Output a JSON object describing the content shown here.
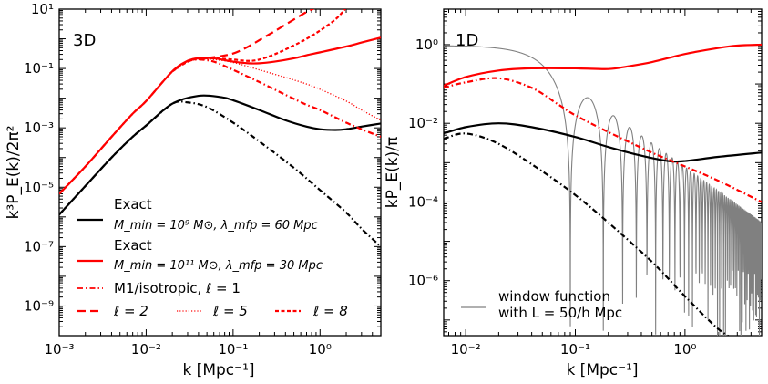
{
  "chart_data": [
    {
      "type": "line",
      "panel_label": "3D",
      "xlabel": "k [Mpc⁻¹]",
      "ylabel": "k³P_E(k)/2π²",
      "xscale": "log",
      "yscale": "log",
      "xlim": [
        0.001,
        5.0
      ],
      "ylim": [
        1e-10,
        10
      ],
      "x_ticks": [
        0.001,
        0.01,
        0.1,
        1
      ],
      "x_tick_labels": [
        "10⁻³",
        "10⁻²",
        "10⁻¹",
        "10⁰"
      ],
      "y_ticks": [
        1e-09,
        1e-07,
        1e-05,
        0.001,
        0.1,
        10
      ],
      "y_tick_labels": [
        "10⁻⁹",
        "10⁻⁷",
        "10⁻⁵",
        "10⁻³",
        "10⁻¹",
        "10¹"
      ],
      "grid": false,
      "legend": {
        "placement": "lower-left",
        "entries": [
          {
            "line1": "Exact",
            "line2": "M_min = 10⁹ M⊙,  λ_mfp = 60 Mpc",
            "color": "#000000",
            "style": "solid"
          },
          {
            "line1": "Exact",
            "line2": "M_min = 10¹¹ M⊙,  λ_mfp = 30 Mpc",
            "color": "#ff0000",
            "style": "solid"
          },
          {
            "line1": "M1/isotropic, ℓ = 1",
            "color": "#ff0000",
            "style": "dashdot"
          }
        ],
        "row": [
          {
            "label": "ℓ = 2",
            "color": "#ff0000",
            "style": "longdash"
          },
          {
            "label": "ℓ = 5",
            "color": "#ff0000",
            "style": "dotted"
          },
          {
            "label": "ℓ = 8",
            "color": "#ff0000",
            "style": "shortdash"
          }
        ]
      },
      "series": [
        {
          "legend_ref": "Exact (M_min=1e9, λ=60)",
          "color": "#000000",
          "style": "solid",
          "x": [
            0.001,
            0.002,
            0.004,
            0.007,
            0.01,
            0.02,
            0.04,
            0.07,
            0.1,
            0.2,
            0.4,
            0.7,
            1.0,
            1.5,
            2.0,
            3.0,
            5.0
          ],
          "y": [
            1.2e-06,
            1.1e-05,
            0.0001,
            0.0005,
            0.0012,
            0.0065,
            0.012,
            0.011,
            0.0085,
            0.004,
            0.0018,
            0.0011,
            0.0009,
            0.00085,
            0.0009,
            0.0011,
            0.0014
          ]
        },
        {
          "legend_ref": "Exact (M_min=1e11, λ=30)",
          "color": "#ff0000",
          "style": "solid",
          "x": [
            0.001,
            0.002,
            0.004,
            0.007,
            0.01,
            0.02,
            0.03,
            0.04,
            0.06,
            0.1,
            0.15,
            0.2,
            0.3,
            0.5,
            0.7,
            1.0,
            2.0,
            3.0,
            5.0
          ],
          "y": [
            6e-06,
            5e-05,
            0.0005,
            0.003,
            0.008,
            0.08,
            0.18,
            0.22,
            0.22,
            0.17,
            0.15,
            0.15,
            0.17,
            0.22,
            0.28,
            0.35,
            0.55,
            0.75,
            1.1
          ]
        },
        {
          "legend_ref": "M1/isotropic, ℓ = 1",
          "color": "#ff0000",
          "style": "dashdot",
          "x": [
            0.001,
            0.002,
            0.004,
            0.007,
            0.01,
            0.02,
            0.03,
            0.04,
            0.06,
            0.1,
            0.2,
            0.4,
            0.7,
            1.0,
            2.0,
            3.0,
            5.0
          ],
          "y": [
            6e-06,
            5e-05,
            0.0005,
            0.003,
            0.008,
            0.08,
            0.17,
            0.2,
            0.17,
            0.09,
            0.035,
            0.013,
            0.006,
            0.004,
            0.0015,
            0.0009,
            0.0005
          ]
        },
        {
          "legend_ref": "ℓ = 2",
          "color": "#ff0000",
          "style": "longdash",
          "x": [
            0.02,
            0.03,
            0.04,
            0.06,
            0.1,
            0.15,
            0.2,
            0.3,
            0.5,
            0.7,
            0.85
          ],
          "y": [
            0.08,
            0.18,
            0.22,
            0.24,
            0.32,
            0.55,
            0.9,
            1.8,
            4.5,
            8.0,
            10.5
          ]
        },
        {
          "legend_ref": "ℓ = 5",
          "color": "#ff0000",
          "style": "dotted",
          "x": [
            0.02,
            0.03,
            0.04,
            0.06,
            0.1,
            0.2,
            0.4,
            0.7,
            1.0,
            2.0,
            3.0,
            5.0
          ],
          "y": [
            0.08,
            0.17,
            0.2,
            0.2,
            0.16,
            0.09,
            0.05,
            0.03,
            0.02,
            0.008,
            0.004,
            0.0018
          ]
        },
        {
          "legend_ref": "ℓ = 8",
          "color": "#ff0000",
          "style": "shortdash",
          "x": [
            0.02,
            0.03,
            0.04,
            0.06,
            0.1,
            0.15,
            0.2,
            0.3,
            0.5,
            0.7,
            1.0,
            1.5,
            2.0
          ],
          "y": [
            0.08,
            0.17,
            0.21,
            0.22,
            0.2,
            0.18,
            0.2,
            0.3,
            0.6,
            1.0,
            1.9,
            4.5,
            11.0
          ]
        },
        {
          "legend_ref": "linear (black dash-dot)",
          "color": "#000000",
          "style": "dashdot",
          "x": [
            0.001,
            0.002,
            0.004,
            0.007,
            0.01,
            0.02,
            0.03,
            0.05,
            0.1,
            0.2,
            0.5,
            1.0,
            2.0,
            3.0,
            5.0
          ],
          "y": [
            1.2e-06,
            1.1e-05,
            0.0001,
            0.0005,
            0.0012,
            0.0065,
            0.0072,
            0.005,
            0.0015,
            0.00035,
            4.5e-05,
            8e-06,
            1.4e-06,
            4e-07,
            1e-07
          ]
        }
      ]
    },
    {
      "type": "line",
      "panel_label": "1D",
      "xlabel": "k [Mpc⁻¹]",
      "ylabel": "kP_E(k)/π",
      "xscale": "log",
      "yscale": "log",
      "xlim": [
        0.0063,
        5.0
      ],
      "ylim": [
        4e-08,
        8
      ],
      "x_ticks": [
        0.01,
        0.1,
        1
      ],
      "x_tick_labels": [
        "10⁻²",
        "10⁻¹",
        "10⁰"
      ],
      "y_ticks": [
        1e-06,
        0.0001,
        0.01,
        1
      ],
      "y_tick_labels": [
        "10⁻⁶",
        "10⁻⁴",
        "10⁻²",
        "10⁰"
      ],
      "grid": false,
      "legend": {
        "placement": "lower-left",
        "entries": [
          {
            "line1": "window function",
            "line2": "with L = 50/h Mpc",
            "color": "#808080",
            "style": "solid"
          }
        ]
      },
      "series": [
        {
          "legend_ref": "black solid",
          "color": "#000000",
          "style": "solid",
          "x": [
            0.0063,
            0.01,
            0.02,
            0.04,
            0.1,
            0.2,
            0.4,
            0.7,
            1.0,
            2.0,
            5.0
          ],
          "y": [
            0.0055,
            0.008,
            0.01,
            0.008,
            0.0045,
            0.0025,
            0.0015,
            0.0011,
            0.0011,
            0.0014,
            0.0018
          ]
        },
        {
          "legend_ref": "red solid",
          "color": "#ff0000",
          "style": "solid",
          "x": [
            0.0063,
            0.01,
            0.02,
            0.04,
            0.1,
            0.2,
            0.3,
            0.5,
            1.0,
            2.0,
            3.0,
            5.0
          ],
          "y": [
            0.09,
            0.15,
            0.22,
            0.25,
            0.25,
            0.24,
            0.28,
            0.36,
            0.58,
            0.82,
            0.95,
            1.0
          ]
        },
        {
          "legend_ref": "red dash-dot",
          "color": "#ff0000",
          "style": "dashdot",
          "x": [
            0.0063,
            0.01,
            0.02,
            0.04,
            0.07,
            0.1,
            0.2,
            0.5,
            1.0,
            2.0,
            5.0
          ],
          "y": [
            0.08,
            0.11,
            0.14,
            0.08,
            0.03,
            0.016,
            0.006,
            0.0018,
            0.0008,
            0.00035,
            0.0001
          ]
        },
        {
          "legend_ref": "black dash-dot",
          "color": "#000000",
          "style": "dashdot",
          "x": [
            0.0063,
            0.01,
            0.02,
            0.05,
            0.1,
            0.2,
            0.5,
            1.0,
            2.0,
            3.0
          ],
          "y": [
            0.004,
            0.0055,
            0.003,
            0.0006,
            0.00015,
            3e-05,
            3e-06,
            4e-07,
            6e-08,
            3e-08
          ]
        }
      ],
      "window_function": {
        "color": "#808080",
        "L_mpc_over_h": 50,
        "plateau": 0.95,
        "first_zero_k": 0.092,
        "zero_spacing_k": 0.09,
        "k_start": 0.0063,
        "k_end": 5.0,
        "floor": 3e-06
      }
    }
  ]
}
